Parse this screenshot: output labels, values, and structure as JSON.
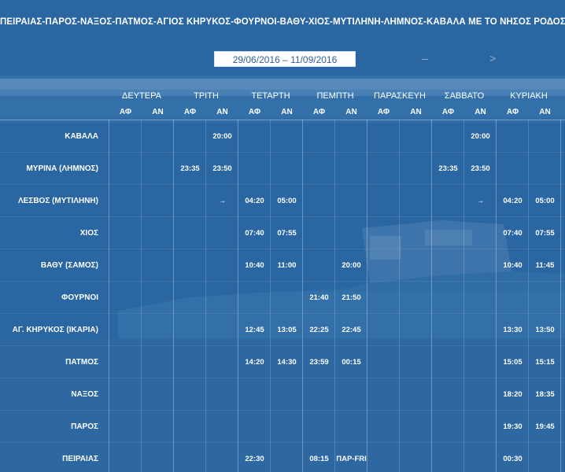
{
  "header": {
    "title": "ΠΕΙΡΑΙΑΣ-ΠΑΡΟΣ-ΝΑΞΟΣ-ΠΑΤΜΟΣ-ΑΓΙΟΣ ΚΗΡΥΚΟΣ-ΦΟΥΡΝΟΙ-ΒΑΘΥ-ΧΙΟΣ-ΜΥΤΙΛΗΝΗ-ΛΗΜΝΟΣ-ΚΑΒΑΛΑ ΜΕ ΤΟ ΝΗΣΟΣ ΡΟΔΟΣ",
    "date_range": "29/06/2016 – 11/09/2016",
    "prev_symbol": "–",
    "next_symbol": ">"
  },
  "days": [
    "ΔΕΥΤΕΡΑ",
    "ΤΡΙΤΗ",
    "ΤΕΤΑΡΤΗ",
    "ΠΕΜΠΤΗ",
    "ΠΑΡΑΣΚΕΥΗ",
    "ΣΑΒΒΑΤΟ",
    "ΚΥΡΙΑΚΗ"
  ],
  "arr_label": "ΑΦ",
  "dep_label": "ΑΝ",
  "rows": [
    {
      "port": "ΚΑΒΑΛΑ",
      "cells": [
        "",
        "",
        "",
        "20:00",
        "",
        "",
        "",
        "",
        "",
        "",
        "",
        "20:00",
        "",
        ""
      ]
    },
    {
      "port": "ΜΥΡΙΝΑ (ΛΗΜΝΟΣ)",
      "cells": [
        "",
        "",
        "23:35",
        "23:50",
        "",
        "",
        "",
        "",
        "",
        "",
        "23:35",
        "23:50",
        "",
        ""
      ]
    },
    {
      "port": "ΛΕΣΒΟΣ (ΜΥΤΙΛΗΝΗ)",
      "cells": [
        "",
        "",
        "",
        "→",
        "04:20",
        "05:00",
        "",
        "",
        "",
        "",
        "",
        "→",
        "04:20",
        "05:00"
      ]
    },
    {
      "port": "ΧΙΟΣ",
      "cells": [
        "",
        "",
        "",
        "",
        "07:40",
        "07:55",
        "",
        "",
        "",
        "",
        "",
        "",
        "07:40",
        "07:55"
      ]
    },
    {
      "port": "ΒΑΘΥ (ΣΑΜΟΣ)",
      "cells": [
        "",
        "",
        "",
        "",
        "10:40",
        "11:00",
        "",
        "20:00",
        "",
        "",
        "",
        "",
        "10:40",
        "11:45"
      ]
    },
    {
      "port": "ΦΟΥΡΝΟΙ",
      "cells": [
        "",
        "",
        "",
        "",
        "",
        "",
        "21:40",
        "21:50",
        "",
        "",
        "",
        "",
        "",
        ""
      ]
    },
    {
      "port": "ΑΓ. ΚΗΡΥΚΟΣ (ΙΚΑΡΙΑ)",
      "cells": [
        "",
        "",
        "",
        "",
        "12:45",
        "13:05",
        "22:25",
        "22:45",
        "",
        "",
        "",
        "",
        "13:30",
        "13:50"
      ]
    },
    {
      "port": "ΠΑΤΜΟΣ",
      "cells": [
        "",
        "",
        "",
        "",
        "14:20",
        "14:30",
        "23:59",
        "00:15",
        "",
        "",
        "",
        "",
        "15:05",
        "15:15"
      ]
    },
    {
      "port": "ΝΑΞΟΣ",
      "cells": [
        "",
        "",
        "",
        "",
        "",
        "",
        "",
        "",
        "",
        "",
        "",
        "",
        "18:20",
        "18:35"
      ]
    },
    {
      "port": "ΠΑΡΟΣ",
      "cells": [
        "",
        "",
        "",
        "",
        "",
        "",
        "",
        "",
        "",
        "",
        "",
        "",
        "19:30",
        "19:45"
      ]
    },
    {
      "port": "ΠΕΙΡΑΙΑΣ",
      "cells": [
        "",
        "",
        "",
        "",
        "22:30",
        "",
        "08:15",
        "ΠΑΡ-FRI",
        "",
        "",
        "",
        "",
        "00:30",
        ""
      ]
    }
  ]
}
